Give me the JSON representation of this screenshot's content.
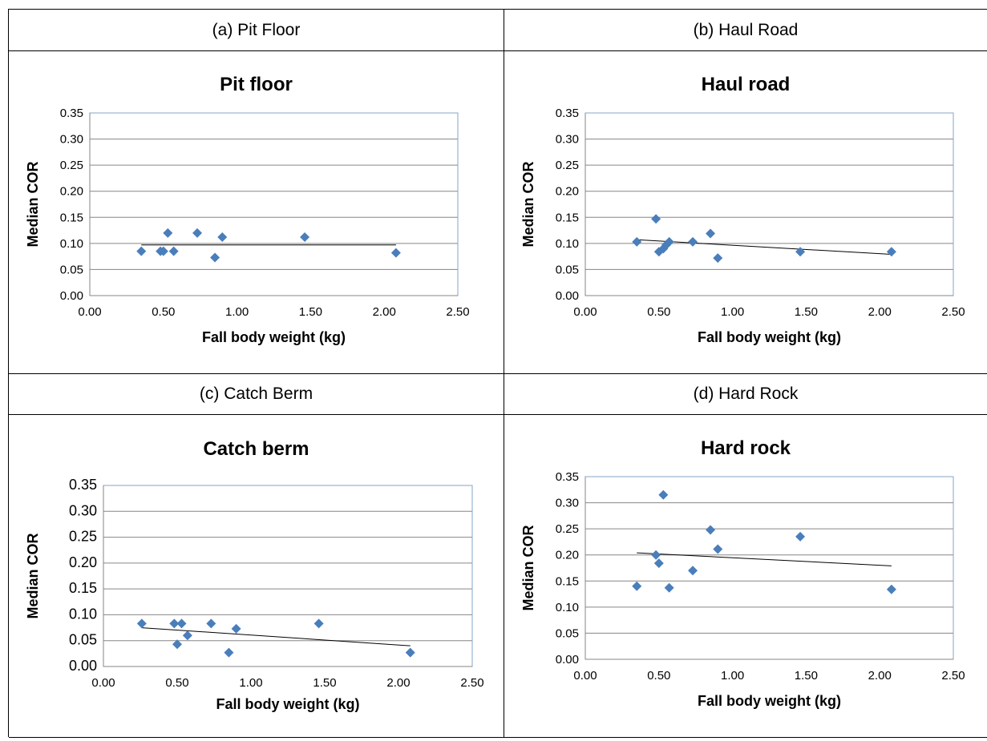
{
  "panels": [
    {
      "caption": "(a) Pit Floor"
    },
    {
      "caption": "(b) Haul Road"
    },
    {
      "caption": "(c) Catch Berm"
    },
    {
      "caption": "(d) Hard Rock"
    }
  ],
  "colors": {
    "marker": "#4a7ebb",
    "trendline": "#000000",
    "gridline": "#868686",
    "plot_border": "#86a4c9"
  },
  "chart_data": [
    {
      "type": "scatter",
      "title": "Pit floor",
      "xlabel": "Fall body weight (kg)",
      "ylabel": "Median COR",
      "xlim": [
        0,
        2.5
      ],
      "ylim": [
        0,
        0.35
      ],
      "x_ticks": [
        "0.00",
        "0.50",
        "1.00",
        "1.50",
        "2.00",
        "2.50"
      ],
      "y_ticks": [
        "0.00",
        "0.05",
        "0.10",
        "0.15",
        "0.20",
        "0.25",
        "0.30",
        "0.35"
      ],
      "grid": "horizontal",
      "legend": "none",
      "marker": "diamond",
      "points": [
        {
          "x": 0.35,
          "y": 0.085
        },
        {
          "x": 0.48,
          "y": 0.085
        },
        {
          "x": 0.5,
          "y": 0.085
        },
        {
          "x": 0.53,
          "y": 0.12
        },
        {
          "x": 0.57,
          "y": 0.085
        },
        {
          "x": 0.73,
          "y": 0.12
        },
        {
          "x": 0.85,
          "y": 0.073
        },
        {
          "x": 0.9,
          "y": 0.112
        },
        {
          "x": 1.46,
          "y": 0.112
        },
        {
          "x": 2.08,
          "y": 0.082
        }
      ],
      "trendline": {
        "type": "linear",
        "from": {
          "x": 0.35,
          "y": 0.097
        },
        "to": {
          "x": 2.08,
          "y": 0.097
        }
      }
    },
    {
      "type": "scatter",
      "title": "Haul road",
      "xlabel": "Fall body weight (kg)",
      "ylabel": "Median COR",
      "xlim": [
        0,
        2.5
      ],
      "ylim": [
        0,
        0.35
      ],
      "x_ticks": [
        "0.00",
        "0.50",
        "1.00",
        "1.50",
        "2.00",
        "2.50"
      ],
      "y_ticks": [
        "0.00",
        "0.05",
        "0.10",
        "0.15",
        "0.20",
        "0.25",
        "0.30",
        "0.35"
      ],
      "grid": "horizontal",
      "legend": "none",
      "marker": "diamond",
      "points": [
        {
          "x": 0.35,
          "y": 0.103
        },
        {
          "x": 0.48,
          "y": 0.147
        },
        {
          "x": 0.5,
          "y": 0.084
        },
        {
          "x": 0.53,
          "y": 0.09
        },
        {
          "x": 0.55,
          "y": 0.097
        },
        {
          "x": 0.57,
          "y": 0.103
        },
        {
          "x": 0.73,
          "y": 0.103
        },
        {
          "x": 0.85,
          "y": 0.119
        },
        {
          "x": 0.9,
          "y": 0.072
        },
        {
          "x": 1.46,
          "y": 0.084
        },
        {
          "x": 2.08,
          "y": 0.084
        }
      ],
      "trendline": {
        "type": "linear",
        "from": {
          "x": 0.35,
          "y": 0.107
        },
        "to": {
          "x": 2.08,
          "y": 0.079
        }
      }
    },
    {
      "type": "scatter",
      "title": "Catch berm",
      "xlabel": "Fall body weight (kg)",
      "ylabel": "Median COR",
      "xlim": [
        0,
        2.5
      ],
      "ylim": [
        0,
        0.35
      ],
      "x_ticks": [
        "0.00",
        "0.50",
        "1.00",
        "1.50",
        "2.00",
        "2.50"
      ],
      "y_ticks": [
        "0.00",
        "0.05",
        "0.10",
        "0.15",
        "0.20",
        "0.25",
        "0.30",
        "0.35"
      ],
      "grid": "horizontal",
      "legend": "none",
      "marker": "diamond",
      "points": [
        {
          "x": 0.26,
          "y": 0.083
        },
        {
          "x": 0.48,
          "y": 0.083
        },
        {
          "x": 0.5,
          "y": 0.043
        },
        {
          "x": 0.53,
          "y": 0.083
        },
        {
          "x": 0.57,
          "y": 0.06
        },
        {
          "x": 0.73,
          "y": 0.083
        },
        {
          "x": 0.85,
          "y": 0.027
        },
        {
          "x": 0.9,
          "y": 0.073
        },
        {
          "x": 1.46,
          "y": 0.083
        },
        {
          "x": 2.08,
          "y": 0.027
        }
      ],
      "trendline": {
        "type": "linear",
        "from": {
          "x": 0.26,
          "y": 0.075
        },
        "to": {
          "x": 2.08,
          "y": 0.04
        }
      }
    },
    {
      "type": "scatter",
      "title": "Hard rock",
      "xlabel": "Fall body weight (kg)",
      "ylabel": "Median COR",
      "xlim": [
        0,
        2.5
      ],
      "ylim": [
        0,
        0.35
      ],
      "x_ticks": [
        "0.00",
        "0.50",
        "1.00",
        "1.50",
        "2.00",
        "2.50"
      ],
      "y_ticks": [
        "0.00",
        "0.05",
        "0.10",
        "0.15",
        "0.20",
        "0.25",
        "0.30",
        "0.35"
      ],
      "grid": "horizontal",
      "legend": "none",
      "marker": "diamond",
      "points": [
        {
          "x": 0.35,
          "y": 0.14
        },
        {
          "x": 0.48,
          "y": 0.2
        },
        {
          "x": 0.5,
          "y": 0.184
        },
        {
          "x": 0.53,
          "y": 0.315
        },
        {
          "x": 0.57,
          "y": 0.137
        },
        {
          "x": 0.73,
          "y": 0.17
        },
        {
          "x": 0.85,
          "y": 0.248
        },
        {
          "x": 0.9,
          "y": 0.211
        },
        {
          "x": 1.46,
          "y": 0.235
        },
        {
          "x": 2.08,
          "y": 0.134
        }
      ],
      "trendline": {
        "type": "linear",
        "from": {
          "x": 0.35,
          "y": 0.204
        },
        "to": {
          "x": 2.08,
          "y": 0.179
        }
      }
    }
  ]
}
